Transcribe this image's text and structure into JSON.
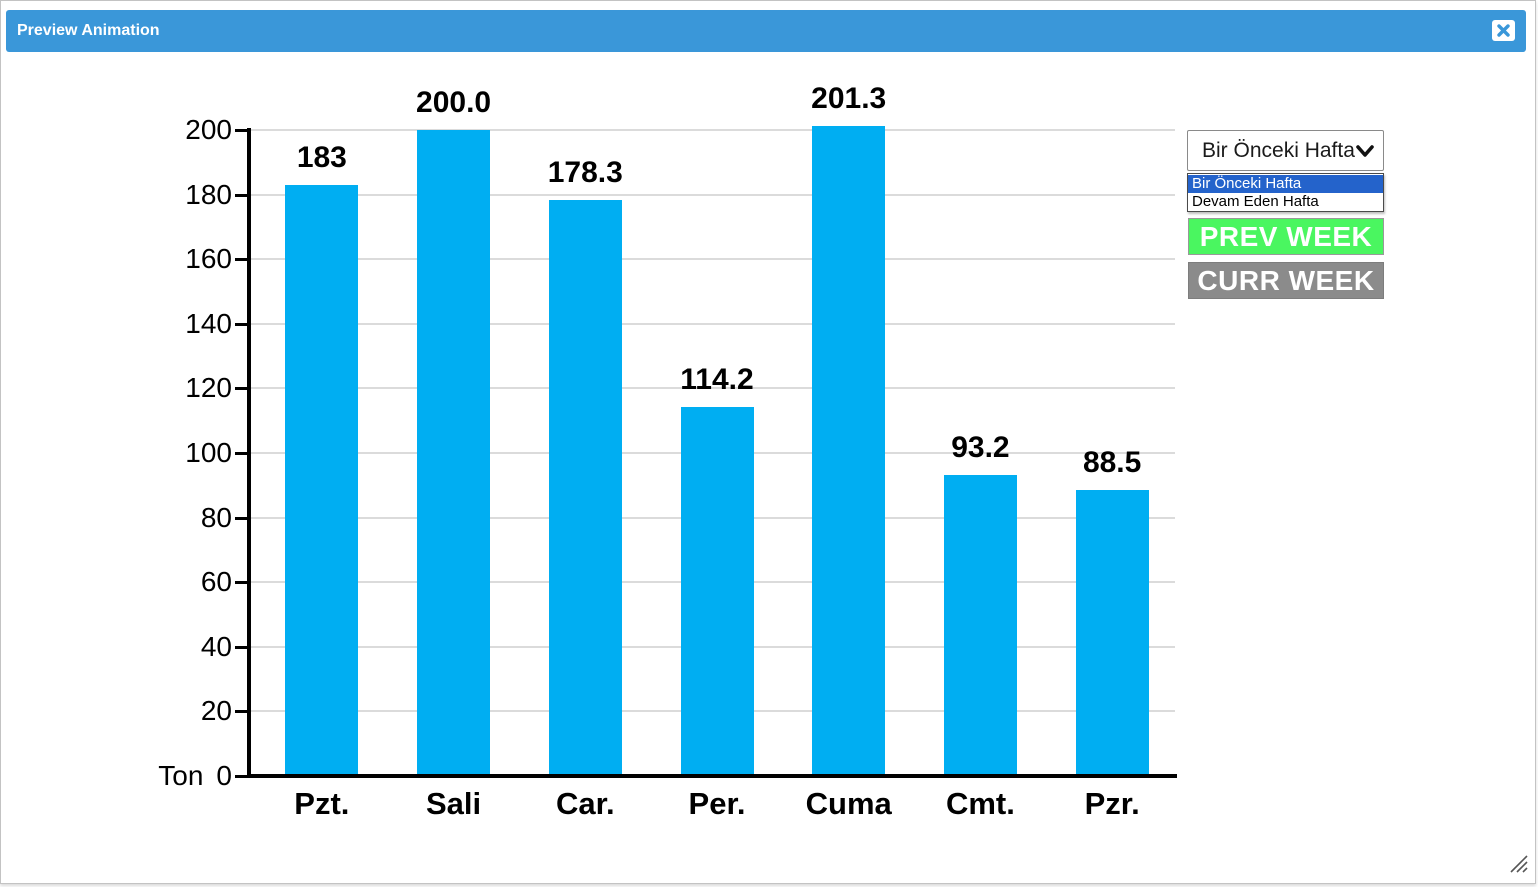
{
  "window": {
    "title": "Preview Animation"
  },
  "icons": {
    "close": "x-cross-icon",
    "select_arrow": "chevron-down-icon",
    "resize": "diagonal-grip-icon"
  },
  "colors": {
    "titlebar": "#3a97d9",
    "close_x": "#3a97d9",
    "bar": "#00aef2",
    "grid": "#dbdbdb",
    "axis": "#000000",
    "option_highlight": "#2463cb",
    "prev_button_bg": "#4af660",
    "curr_button_bg": "#8b8b8b",
    "button_text": "#ffffff"
  },
  "chart_data": {
    "type": "bar",
    "categories": [
      "Pzt.",
      "Sali",
      "Car.",
      "Per.",
      "Cuma",
      "Cmt.",
      "Pzr."
    ],
    "values": [
      183,
      200.0,
      178.3,
      114.2,
      201.3,
      93.2,
      88.5
    ],
    "value_labels": [
      "183",
      "200.0",
      "178.3",
      "114.2",
      "201.3",
      "93.2",
      "88.5"
    ],
    "unit_label": "Ton",
    "y_ticks": [
      0,
      20,
      40,
      60,
      80,
      100,
      120,
      140,
      160,
      180,
      200
    ],
    "ylim": [
      0,
      200
    ],
    "grid": true,
    "legend": false,
    "title": ""
  },
  "controls": {
    "week_select": {
      "value": "Bir Önceki Hafta",
      "options": [
        "Bir Önceki Hafta",
        "Devam Eden Hafta"
      ],
      "selected_index": 0
    },
    "buttons": {
      "prev": "PREV WEEK",
      "curr": "CURR WEEK"
    }
  }
}
